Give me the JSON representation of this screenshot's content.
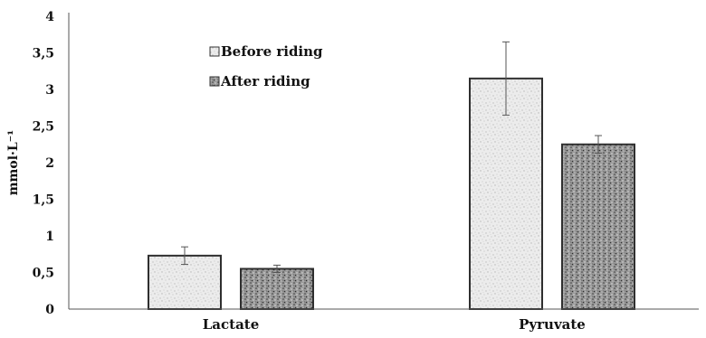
{
  "chart_data": {
    "type": "bar",
    "title": "",
    "xlabel": "",
    "ylabel": "mmol·L⁻¹",
    "categories": [
      "Lactate",
      "Pyruvate"
    ],
    "series": [
      {
        "name": "Before riding",
        "values": [
          0.73,
          3.15
        ],
        "errors": [
          0.12,
          0.5
        ],
        "pattern": "light-speckle"
      },
      {
        "name": "After riding",
        "values": [
          0.55,
          2.25
        ],
        "errors": [
          0.05,
          0.12
        ],
        "pattern": "dark-speckle"
      }
    ],
    "ylim": [
      0,
      4
    ],
    "yticks": [
      "0",
      "0,5",
      "1",
      "1,5",
      "2",
      "2,5",
      "3",
      "3,5",
      "4"
    ],
    "ytick_values": [
      0,
      0.5,
      1,
      1.5,
      2,
      2.5,
      3,
      3.5,
      4
    ],
    "grid": false,
    "legend_position": "upper-left-inside",
    "colors": {
      "light_fill": "#e6e6e6",
      "dark_fill": "#8a8a8a",
      "outline": "#333333",
      "axis": "#555555"
    }
  }
}
